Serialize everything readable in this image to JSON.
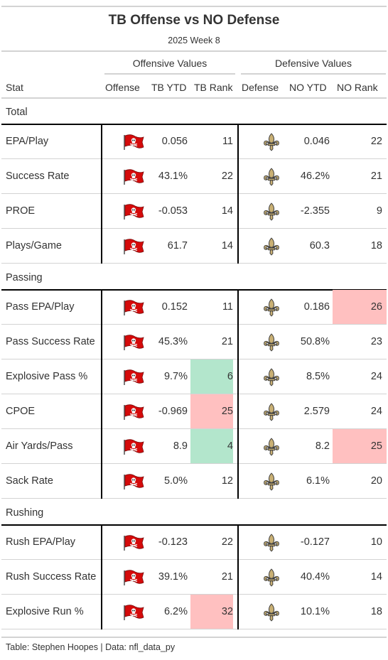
{
  "title": "TB Offense vs NO Defense",
  "subtitle": "2025 Week 8",
  "spanners": {
    "offense": "Offensive Values",
    "defense": "Defensive Values"
  },
  "columns": {
    "stat": "Stat",
    "offense": "Offense",
    "tb_ytd": "TB YTD",
    "tb_rank": "TB Rank",
    "defense": "Defense",
    "no_ytd": "NO YTD",
    "no_rank": "NO Rank"
  },
  "colors": {
    "good_rank": "#b3e6cc",
    "bad_rank": "#ffc0c0",
    "buccaneers_red": "#d50a0a",
    "saints_gold": "#c9b074"
  },
  "icons": {
    "offense_logo": "buccaneers-flag-icon",
    "defense_logo": "saints-fleur-de-lis-icon"
  },
  "groups": [
    {
      "label": "Total",
      "rows": [
        {
          "stat": "EPA/Play",
          "tb_ytd": "0.056",
          "tb_rank": "11",
          "tb_rank_color": "",
          "no_ytd": "0.046",
          "no_rank": "22",
          "no_rank_color": ""
        },
        {
          "stat": "Success Rate",
          "tb_ytd": "43.1%",
          "tb_rank": "22",
          "tb_rank_color": "",
          "no_ytd": "46.2%",
          "no_rank": "21",
          "no_rank_color": ""
        },
        {
          "stat": "PROE",
          "tb_ytd": "-0.053",
          "tb_rank": "14",
          "tb_rank_color": "",
          "no_ytd": "-2.355",
          "no_rank": "9",
          "no_rank_color": ""
        },
        {
          "stat": "Plays/Game",
          "tb_ytd": "61.7",
          "tb_rank": "14",
          "tb_rank_color": "",
          "no_ytd": "60.3",
          "no_rank": "18",
          "no_rank_color": ""
        }
      ]
    },
    {
      "label": "Passing",
      "rows": [
        {
          "stat": "Pass EPA/Play",
          "tb_ytd": "0.152",
          "tb_rank": "11",
          "tb_rank_color": "",
          "no_ytd": "0.186",
          "no_rank": "26",
          "no_rank_color": "bad"
        },
        {
          "stat": "Pass Success Rate",
          "tb_ytd": "45.3%",
          "tb_rank": "21",
          "tb_rank_color": "",
          "no_ytd": "50.8%",
          "no_rank": "23",
          "no_rank_color": ""
        },
        {
          "stat": "Explosive Pass %",
          "tb_ytd": "9.7%",
          "tb_rank": "6",
          "tb_rank_color": "good",
          "no_ytd": "8.5%",
          "no_rank": "24",
          "no_rank_color": ""
        },
        {
          "stat": "CPOE",
          "tb_ytd": "-0.969",
          "tb_rank": "25",
          "tb_rank_color": "bad",
          "no_ytd": "2.579",
          "no_rank": "24",
          "no_rank_color": ""
        },
        {
          "stat": "Air Yards/Pass",
          "tb_ytd": "8.9",
          "tb_rank": "4",
          "tb_rank_color": "good",
          "no_ytd": "8.2",
          "no_rank": "25",
          "no_rank_color": "bad"
        },
        {
          "stat": "Sack Rate",
          "tb_ytd": "5.0%",
          "tb_rank": "12",
          "tb_rank_color": "",
          "no_ytd": "6.1%",
          "no_rank": "20",
          "no_rank_color": ""
        }
      ]
    },
    {
      "label": "Rushing",
      "rows": [
        {
          "stat": "Rush EPA/Play",
          "tb_ytd": "-0.123",
          "tb_rank": "22",
          "tb_rank_color": "",
          "no_ytd": "-0.127",
          "no_rank": "10",
          "no_rank_color": ""
        },
        {
          "stat": "Rush Success Rate",
          "tb_ytd": "39.1%",
          "tb_rank": "21",
          "tb_rank_color": "",
          "no_ytd": "40.4%",
          "no_rank": "14",
          "no_rank_color": ""
        },
        {
          "stat": "Explosive Run %",
          "tb_ytd": "6.2%",
          "tb_rank": "32",
          "tb_rank_color": "bad",
          "no_ytd": "10.1%",
          "no_rank": "18",
          "no_rank_color": ""
        }
      ]
    }
  ],
  "footer": "Table: Stephen Hoopes | Data: nfl_data_py"
}
